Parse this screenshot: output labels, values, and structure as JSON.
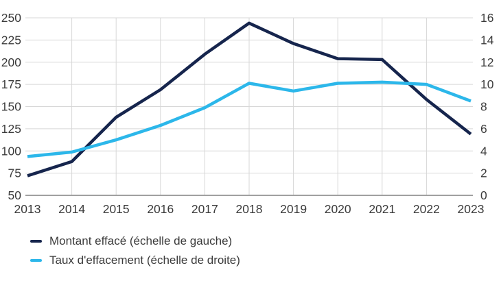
{
  "chart_data": {
    "type": "line",
    "x": [
      2013,
      2014,
      2015,
      2016,
      2017,
      2018,
      2019,
      2020,
      2021,
      2022,
      2023
    ],
    "series": [
      {
        "name": "Montant effacé (échelle de gauche)",
        "axis": "left",
        "color": "#16254d",
        "values": [
          72,
          88,
          138,
          169,
          209,
          244,
          221,
          204,
          203,
          158,
          119
        ]
      },
      {
        "name": "Taux d'effacement (échelle de droite)",
        "axis": "right",
        "color": "#2cb7ea",
        "values": [
          3.5,
          3.9,
          5.0,
          6.3,
          7.9,
          10.1,
          9.4,
          10.1,
          10.2,
          10.0,
          8.5
        ]
      }
    ],
    "left_axis": {
      "min": 50,
      "max": 250,
      "step": 25
    },
    "right_axis": {
      "min": 0,
      "max": 16,
      "step": 2
    },
    "grid": true,
    "legend_position": "bottom-left",
    "title": "",
    "xlabel": "",
    "ylabel_left": "",
    "ylabel_right": ""
  },
  "colors": {
    "gridline": "#d7d7d7",
    "axis_line": "#a0a0a0",
    "tick_text": "#3b3b3b"
  }
}
